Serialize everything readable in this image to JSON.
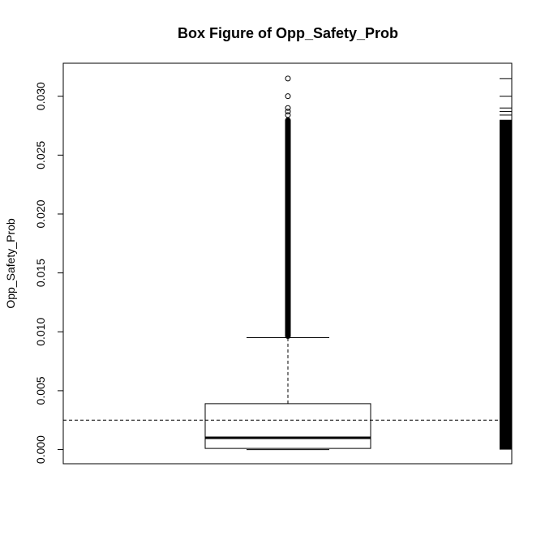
{
  "chart_data": {
    "type": "boxplot",
    "title": "Box Figure of Opp_Safety_Prob",
    "xlabel": "",
    "ylabel": "Opp_Safety_Prob",
    "ylim": [
      -0.0012,
      0.0328
    ],
    "yticks": [
      "0.000",
      "0.005",
      "0.010",
      "0.015",
      "0.020",
      "0.025",
      "0.030"
    ],
    "grid": false,
    "legend": "none",
    "box": {
      "min": 0.0,
      "q1": 0.0001,
      "median": 0.001,
      "q3": 0.0039,
      "upper_whisker": 0.0095
    },
    "mean_reference_line": 0.0025,
    "outlier_dense_range": [
      0.0094,
      0.0282
    ],
    "outliers": [
      0.0284,
      0.0287,
      0.029,
      0.03,
      0.0315
    ],
    "rug": {
      "dense_range": [
        0.0,
        0.028
      ],
      "ticks": [
        0.0284,
        0.0287,
        0.029,
        0.03,
        0.0315
      ]
    }
  }
}
